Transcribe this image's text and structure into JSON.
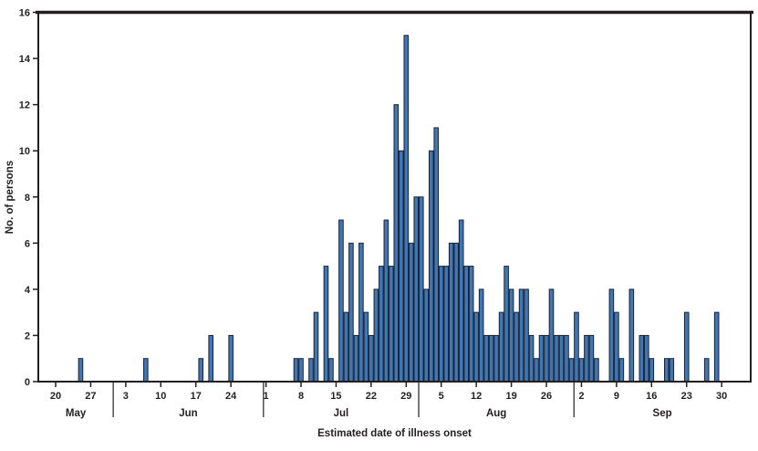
{
  "chart_data": {
    "type": "bar",
    "title": "",
    "xlabel": "Estimated date of illness onset",
    "ylabel": "No. of persons",
    "ylim": [
      0,
      16
    ],
    "y_ticks": [
      0,
      2,
      4,
      6,
      8,
      10,
      12,
      14,
      16
    ],
    "legend": "none",
    "grid": false,
    "first_plotted_date": {
      "month": "May",
      "day": 20
    },
    "months": [
      {
        "name": "May",
        "days": 31,
        "ticks": [
          20,
          27
        ]
      },
      {
        "name": "Jun",
        "days": 30,
        "ticks": [
          3,
          10,
          17,
          24
        ]
      },
      {
        "name": "Jul",
        "days": 31,
        "ticks": [
          1,
          8,
          15,
          22,
          29
        ]
      },
      {
        "name": "Aug",
        "days": 31,
        "ticks": [
          5,
          12,
          19,
          26
        ]
      },
      {
        "name": "Sep",
        "days": 30,
        "ticks": [
          2,
          9,
          16,
          23,
          30
        ]
      }
    ],
    "bars": [
      {
        "month": "May",
        "day": 25,
        "count": 1
      },
      {
        "month": "Jun",
        "day": 7,
        "count": 1
      },
      {
        "month": "Jun",
        "day": 18,
        "count": 1
      },
      {
        "month": "Jun",
        "day": 20,
        "count": 2
      },
      {
        "month": "Jun",
        "day": 24,
        "count": 2
      },
      {
        "month": "Jul",
        "day": 7,
        "count": 1
      },
      {
        "month": "Jul",
        "day": 8,
        "count": 1
      },
      {
        "month": "Jul",
        "day": 10,
        "count": 1
      },
      {
        "month": "Jul",
        "day": 11,
        "count": 3
      },
      {
        "month": "Jul",
        "day": 13,
        "count": 5
      },
      {
        "month": "Jul",
        "day": 14,
        "count": 1
      },
      {
        "month": "Jul",
        "day": 16,
        "count": 7
      },
      {
        "month": "Jul",
        "day": 17,
        "count": 3
      },
      {
        "month": "Jul",
        "day": 18,
        "count": 6
      },
      {
        "month": "Jul",
        "day": 19,
        "count": 2
      },
      {
        "month": "Jul",
        "day": 20,
        "count": 6
      },
      {
        "month": "Jul",
        "day": 21,
        "count": 3
      },
      {
        "month": "Jul",
        "day": 22,
        "count": 2
      },
      {
        "month": "Jul",
        "day": 23,
        "count": 4
      },
      {
        "month": "Jul",
        "day": 24,
        "count": 5
      },
      {
        "month": "Jul",
        "day": 25,
        "count": 7
      },
      {
        "month": "Jul",
        "day": 26,
        "count": 5
      },
      {
        "month": "Jul",
        "day": 27,
        "count": 12
      },
      {
        "month": "Jul",
        "day": 28,
        "count": 10
      },
      {
        "month": "Jul",
        "day": 29,
        "count": 15
      },
      {
        "month": "Jul",
        "day": 30,
        "count": 6
      },
      {
        "month": "Jul",
        "day": 31,
        "count": 8
      },
      {
        "month": "Aug",
        "day": 1,
        "count": 8
      },
      {
        "month": "Aug",
        "day": 2,
        "count": 4
      },
      {
        "month": "Aug",
        "day": 3,
        "count": 10
      },
      {
        "month": "Aug",
        "day": 4,
        "count": 11
      },
      {
        "month": "Aug",
        "day": 5,
        "count": 5
      },
      {
        "month": "Aug",
        "day": 6,
        "count": 5
      },
      {
        "month": "Aug",
        "day": 7,
        "count": 6
      },
      {
        "month": "Aug",
        "day": 8,
        "count": 6
      },
      {
        "month": "Aug",
        "day": 9,
        "count": 7
      },
      {
        "month": "Aug",
        "day": 10,
        "count": 5
      },
      {
        "month": "Aug",
        "day": 11,
        "count": 5
      },
      {
        "month": "Aug",
        "day": 12,
        "count": 3
      },
      {
        "month": "Aug",
        "day": 13,
        "count": 4
      },
      {
        "month": "Aug",
        "day": 14,
        "count": 2
      },
      {
        "month": "Aug",
        "day": 15,
        "count": 2
      },
      {
        "month": "Aug",
        "day": 16,
        "count": 2
      },
      {
        "month": "Aug",
        "day": 17,
        "count": 3
      },
      {
        "month": "Aug",
        "day": 18,
        "count": 5
      },
      {
        "month": "Aug",
        "day": 19,
        "count": 4
      },
      {
        "month": "Aug",
        "day": 20,
        "count": 3
      },
      {
        "month": "Aug",
        "day": 21,
        "count": 4
      },
      {
        "month": "Aug",
        "day": 22,
        "count": 4
      },
      {
        "month": "Aug",
        "day": 23,
        "count": 2
      },
      {
        "month": "Aug",
        "day": 24,
        "count": 1
      },
      {
        "month": "Aug",
        "day": 25,
        "count": 2
      },
      {
        "month": "Aug",
        "day": 26,
        "count": 2
      },
      {
        "month": "Aug",
        "day": 27,
        "count": 4
      },
      {
        "month": "Aug",
        "day": 28,
        "count": 2
      },
      {
        "month": "Aug",
        "day": 29,
        "count": 2
      },
      {
        "month": "Aug",
        "day": 30,
        "count": 2
      },
      {
        "month": "Aug",
        "day": 31,
        "count": 1
      },
      {
        "month": "Sep",
        "day": 1,
        "count": 3
      },
      {
        "month": "Sep",
        "day": 2,
        "count": 1
      },
      {
        "month": "Sep",
        "day": 3,
        "count": 2
      },
      {
        "month": "Sep",
        "day": 4,
        "count": 2
      },
      {
        "month": "Sep",
        "day": 5,
        "count": 1
      },
      {
        "month": "Sep",
        "day": 8,
        "count": 4
      },
      {
        "month": "Sep",
        "day": 9,
        "count": 3
      },
      {
        "month": "Sep",
        "day": 10,
        "count": 1
      },
      {
        "month": "Sep",
        "day": 12,
        "count": 4
      },
      {
        "month": "Sep",
        "day": 14,
        "count": 2
      },
      {
        "month": "Sep",
        "day": 15,
        "count": 2
      },
      {
        "month": "Sep",
        "day": 16,
        "count": 1
      },
      {
        "month": "Sep",
        "day": 19,
        "count": 1
      },
      {
        "month": "Sep",
        "day": 20,
        "count": 1
      },
      {
        "month": "Sep",
        "day": 23,
        "count": 3
      },
      {
        "month": "Sep",
        "day": 27,
        "count": 1
      },
      {
        "month": "Sep",
        "day": 29,
        "count": 3
      }
    ],
    "colors": {
      "bar_fill": "#4076b4",
      "bar_stroke": "#1b2330",
      "axis": "#231f20",
      "background": "#ffffff"
    }
  }
}
